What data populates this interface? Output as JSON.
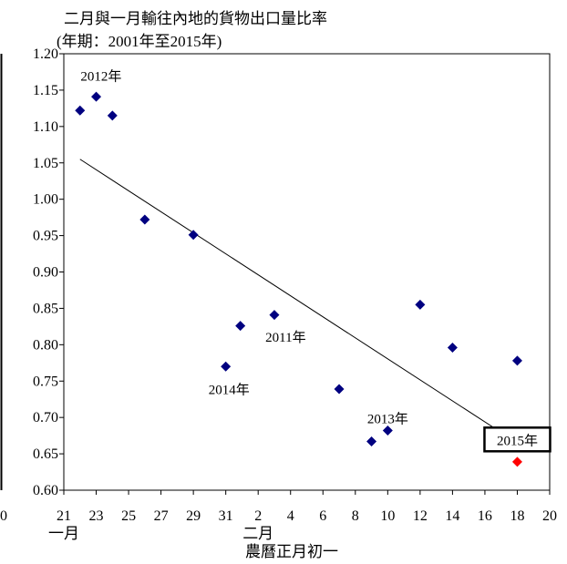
{
  "chart_data": {
    "type": "scatter",
    "title": "二月與一月輸往內地的貨物出口量比率",
    "subtitle": "(年期：2001年至2015年)",
    "xlabel": "農曆正月初一",
    "month_labels": [
      {
        "text": "一月",
        "at": 0
      },
      {
        "text": "二月",
        "at": 12
      }
    ],
    "x_tick_labels": [
      "21",
      "23",
      "25",
      "27",
      "29",
      "31",
      "2",
      "4",
      "6",
      "8",
      "10",
      "12",
      "14",
      "16",
      "18",
      "20"
    ],
    "x_left_edge_label": "0",
    "y_tick_labels": [
      "0.60",
      "0.65",
      "0.70",
      "0.75",
      "0.80",
      "0.85",
      "0.90",
      "0.95",
      "1.00",
      "1.05",
      "1.10",
      "1.15",
      "1.20"
    ],
    "xlim": [
      0,
      30
    ],
    "ylim": [
      0.6,
      1.2
    ],
    "points": [
      {
        "x": 1,
        "y": 1.122
      },
      {
        "x": 2,
        "y": 1.141
      },
      {
        "x": 3,
        "y": 1.115
      },
      {
        "x": 5,
        "y": 0.972
      },
      {
        "x": 8,
        "y": 0.951
      },
      {
        "x": 10,
        "y": 0.77
      },
      {
        "x": 10.9,
        "y": 0.826
      },
      {
        "x": 13,
        "y": 0.841
      },
      {
        "x": 17,
        "y": 0.739
      },
      {
        "x": 19,
        "y": 0.667
      },
      {
        "x": 20,
        "y": 0.682
      },
      {
        "x": 22,
        "y": 0.855
      },
      {
        "x": 24,
        "y": 0.796
      },
      {
        "x": 28,
        "y": 0.778
      }
    ],
    "highlight_point": {
      "x": 28,
      "y": 0.639
    },
    "trendline": {
      "x1": 1,
      "y1": 1.055,
      "x2": 28,
      "y2": 0.665
    },
    "annotations": [
      {
        "text": "2012年",
        "x": 2.3,
        "y": 1.163
      },
      {
        "text": "2011年",
        "x": 13.7,
        "y": 0.804
      },
      {
        "text": "2014年",
        "x": 10.2,
        "y": 0.732
      },
      {
        "text": "2013年",
        "x": 20,
        "y": 0.692
      }
    ],
    "boxed_annotation": {
      "text": "2015年",
      "x": 28,
      "y": 0.661
    },
    "colors": {
      "points": "#000080",
      "highlight": "#ff0000",
      "trendline": "#000000"
    },
    "grid": false,
    "legend": "none"
  }
}
